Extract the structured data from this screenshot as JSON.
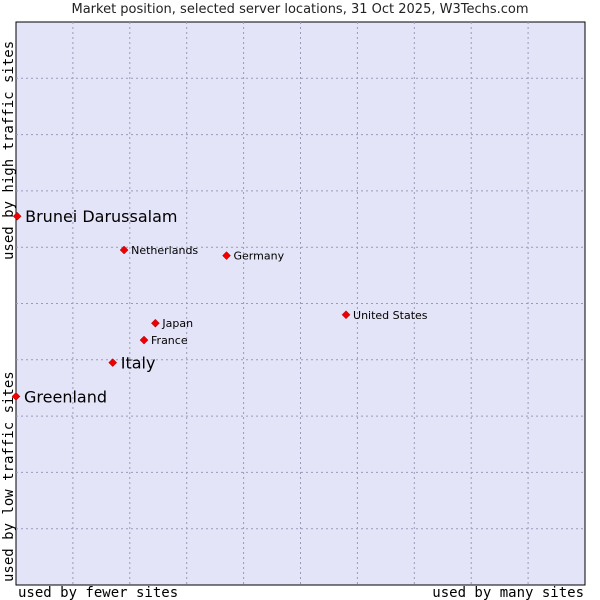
{
  "chart_data": {
    "type": "scatter",
    "title": "Market position, selected server locations, 31 Oct 2025, W3Techs.com",
    "xlabel_left": "used by fewer sites",
    "xlabel_right": "used by many sites",
    "ylabel_low": "used by low traffic sites",
    "ylabel_high": "used by high traffic sites",
    "xlim": [
      0,
      100
    ],
    "ylim": [
      0,
      100
    ],
    "grid": true,
    "points": [
      {
        "name": "Brunei Darussalam",
        "x": 0.2,
        "y": 65.5,
        "highlight": true
      },
      {
        "name": "Netherlands",
        "x": 19.0,
        "y": 59.5,
        "highlight": false
      },
      {
        "name": "Germany",
        "x": 37.0,
        "y": 58.5,
        "highlight": false
      },
      {
        "name": "United States",
        "x": 58.0,
        "y": 48.0,
        "highlight": false
      },
      {
        "name": "Japan",
        "x": 24.5,
        "y": 46.5,
        "highlight": false
      },
      {
        "name": "France",
        "x": 22.5,
        "y": 43.5,
        "highlight": false
      },
      {
        "name": "Italy",
        "x": 17.0,
        "y": 39.5,
        "highlight": true
      },
      {
        "name": "Greenland",
        "x": 0.0,
        "y": 33.5,
        "highlight": true
      }
    ]
  },
  "colors": {
    "plot_background": "#e4e4f8",
    "grid": "#9a9ab8",
    "point": "#ee0000"
  }
}
